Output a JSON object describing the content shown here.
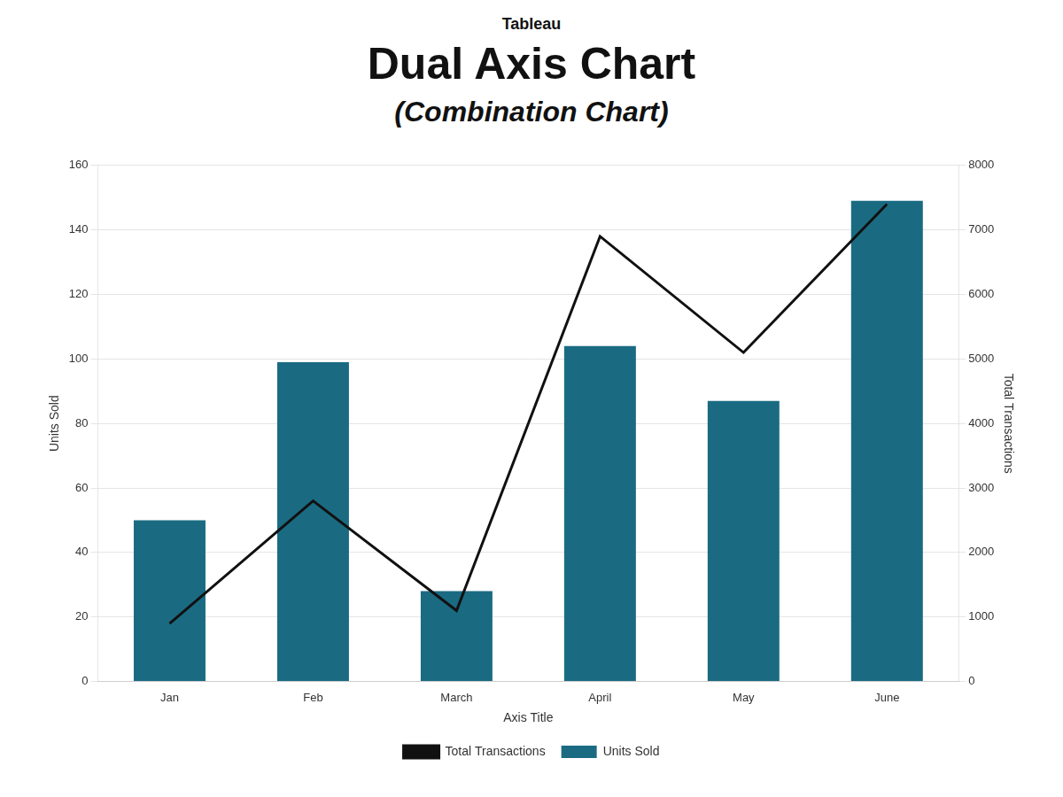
{
  "chart_data": {
    "type": "bar",
    "title": "Dual Axis Chart",
    "subtitle": "(Combination Chart)",
    "annotations": [
      "Tableau"
    ],
    "xlabel": "Axis Title",
    "ylabel": "Units Sold",
    "y2label": "Total Transactions",
    "categories": [
      "Jan",
      "Feb",
      "March",
      "April",
      "May",
      "June"
    ],
    "series": [
      {
        "name": "Units Sold",
        "type": "bar",
        "color": "#1a6b82",
        "values": [
          50,
          99,
          28,
          104,
          87,
          149
        ]
      },
      {
        "name": "Total Transactions",
        "type": "line",
        "color": "#111111",
        "marker": "none",
        "axis": "y2",
        "values": [
          900,
          2800,
          1100,
          6900,
          5100,
          7400
        ]
      }
    ],
    "ylim": [
      0,
      160
    ],
    "yticks": [
      0,
      20,
      40,
      60,
      80,
      100,
      120,
      140,
      160
    ],
    "y2lim": [
      0,
      8000
    ],
    "y2ticks": [
      0,
      1000,
      2000,
      3000,
      4000,
      5000,
      6000,
      7000,
      8000
    ],
    "grid": true,
    "legend": "bottom"
  }
}
